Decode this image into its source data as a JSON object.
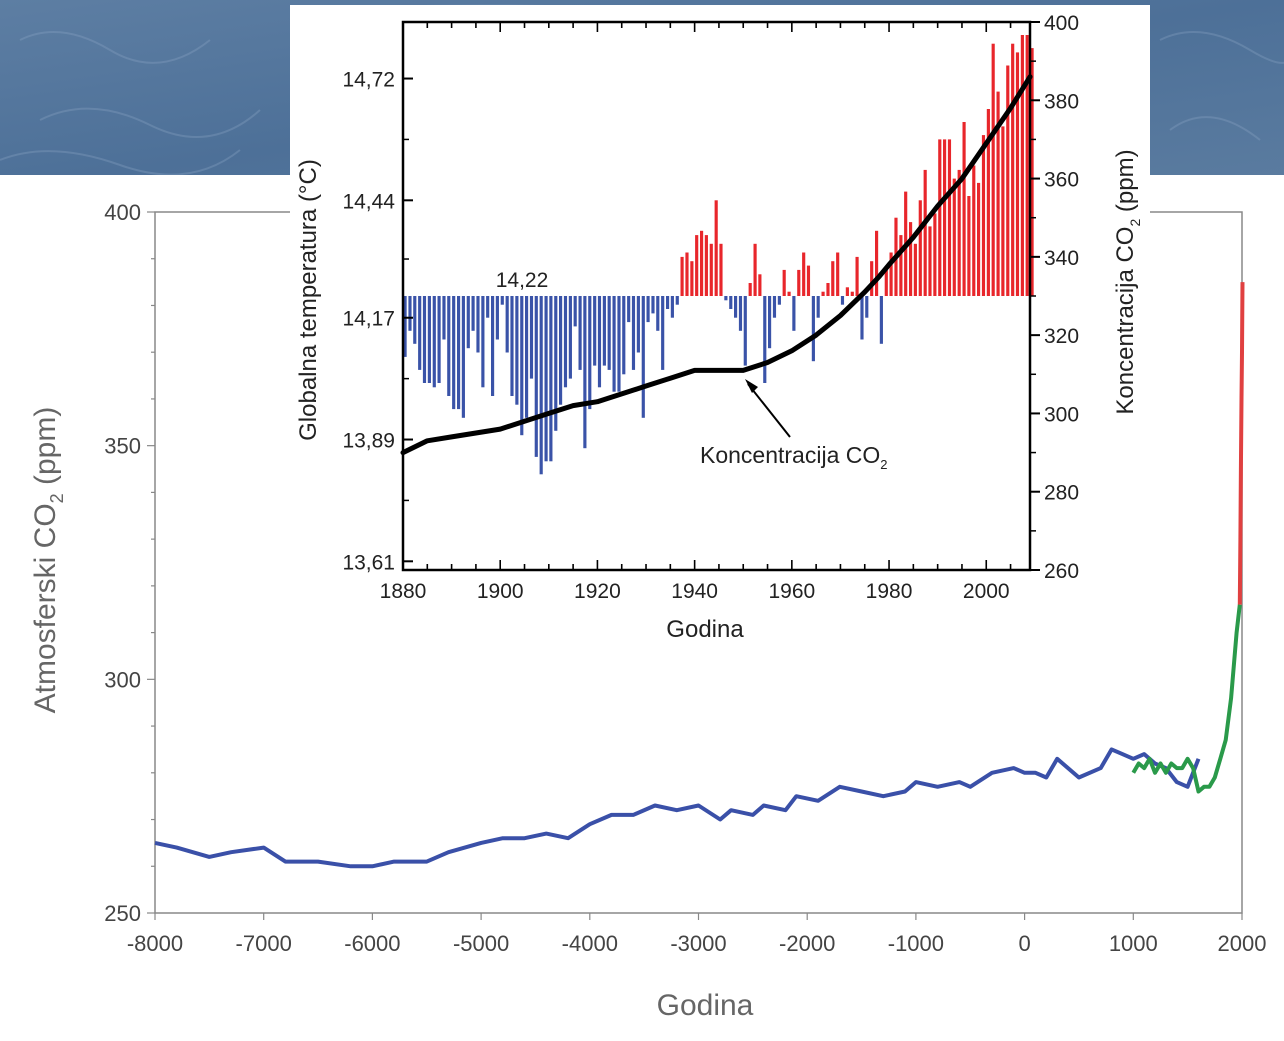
{
  "chart_data": [
    {
      "type": "line",
      "title": "",
      "xlabel": "Godina",
      "ylabel_text": "Atmosferski CO",
      "ylabel_sub": "2",
      "ylabel_unit": " (ppm)",
      "xlim": [
        -8000,
        2000
      ],
      "ylim": [
        250,
        400
      ],
      "x_ticks": [
        -8000,
        -7000,
        -6000,
        -5000,
        -4000,
        -3000,
        -2000,
        -1000,
        0,
        1000,
        2000
      ],
      "y_ticks": [
        250,
        300,
        350,
        400
      ],
      "grid": false,
      "series": [
        {
          "color": "#3a50a8",
          "x": [
            -8000,
            -7800,
            -7500,
            -7300,
            -7000,
            -6800,
            -6500,
            -6200,
            -6000,
            -5800,
            -5500,
            -5300,
            -5000,
            -4800,
            -4600,
            -4400,
            -4200,
            -4000,
            -3800,
            -3600,
            -3400,
            -3200,
            -3000,
            -2800,
            -2700,
            -2500,
            -2400,
            -2200,
            -2100,
            -1900,
            -1700,
            -1500,
            -1300,
            -1100,
            -1000,
            -800,
            -600,
            -500,
            -300,
            -100,
            0,
            100,
            200,
            300,
            500,
            700,
            800,
            900,
            1000,
            1100,
            1200,
            1300,
            1400,
            1500,
            1600
          ],
          "y": [
            265,
            264,
            262,
            263,
            264,
            261,
            261,
            260,
            260,
            261,
            261,
            263,
            265,
            266,
            266,
            267,
            266,
            269,
            271,
            271,
            273,
            272,
            273,
            270,
            272,
            271,
            273,
            272,
            275,
            274,
            277,
            276,
            275,
            276,
            278,
            277,
            278,
            277,
            280,
            281,
            280,
            280,
            279,
            283,
            279,
            281,
            285,
            284,
            283,
            284,
            282,
            281,
            278,
            277,
            283
          ]
        },
        {
          "color": "#2a9a4a",
          "x": [
            1000,
            1050,
            1100,
            1150,
            1200,
            1250,
            1300,
            1350,
            1400,
            1450,
            1500,
            1550,
            1600,
            1650,
            1700,
            1750,
            1800,
            1850,
            1900,
            1950,
            1980
          ],
          "y": [
            280,
            282,
            281,
            283,
            280,
            282,
            280,
            282,
            281,
            281,
            283,
            281,
            276,
            277,
            277,
            279,
            283,
            287,
            296,
            310,
            316
          ]
        },
        {
          "color": "#e04040",
          "x": [
            1980,
            1985,
            1990,
            1995,
            2000,
            2005
          ],
          "y": [
            316,
            330,
            345,
            360,
            370,
            385
          ]
        }
      ]
    },
    {
      "type": "bar",
      "title": "",
      "xlabel": "Godina",
      "ylabel_left": "Globalna temperatura (°C)",
      "ylabel_right_text": "Koncentracija CO",
      "ylabel_right_sub": "2",
      "ylabel_right_unit": " (ppm)",
      "xlim": [
        1880,
        2009
      ],
      "ylim_left": [
        13.59,
        14.85
      ],
      "ylim_right": [
        260,
        400
      ],
      "x_ticks": [
        1880,
        1900,
        1920,
        1940,
        1960,
        1980,
        2000
      ],
      "y_ticks_left": [
        "13,61",
        "13,89",
        "14,17",
        "14,44",
        "14,72"
      ],
      "y_ticks_left_values": [
        13.61,
        13.89,
        14.17,
        14.44,
        14.72
      ],
      "y_ticks_right": [
        260,
        280,
        300,
        320,
        340,
        360,
        380,
        400
      ],
      "baseline": 14.22,
      "baseline_label": "14,22",
      "annotation": "Koncentracija CO",
      "annotation_sub": "2",
      "colors": {
        "above": "#e8262b",
        "below": "#3a53a8",
        "line": "#000000"
      },
      "years_start": 1880,
      "temperature_anomaly": [
        -0.14,
        -0.08,
        -0.11,
        -0.17,
        -0.2,
        -0.2,
        -0.21,
        -0.2,
        -0.1,
        -0.23,
        -0.26,
        -0.26,
        -0.28,
        -0.12,
        -0.08,
        -0.13,
        -0.21,
        -0.05,
        -0.23,
        -0.1,
        -0.02,
        -0.13,
        -0.23,
        -0.25,
        -0.32,
        -0.28,
        -0.19,
        -0.37,
        -0.41,
        -0.38,
        -0.38,
        -0.31,
        -0.25,
        -0.21,
        -0.19,
        -0.07,
        -0.17,
        -0.35,
        -0.26,
        -0.16,
        -0.21,
        -0.16,
        -0.17,
        -0.22,
        -0.22,
        -0.18,
        -0.06,
        -0.17,
        -0.13,
        -0.28,
        -0.06,
        -0.04,
        -0.08,
        -0.17,
        -0.03,
        -0.05,
        -0.02,
        0.09,
        0.1,
        0.08,
        0.14,
        0.15,
        0.14,
        0.12,
        0.22,
        0.12,
        -0.01,
        -0.03,
        -0.05,
        -0.08,
        -0.16,
        0.03,
        0.12,
        0.05,
        -0.2,
        -0.12,
        -0.05,
        -0.02,
        0.06,
        0.01,
        -0.08,
        0.06,
        0.1,
        0.07,
        -0.15,
        -0.05,
        0.01,
        0.03,
        0.08,
        0.1,
        -0.02,
        0.02,
        0.01,
        0.09,
        -0.1,
        -0.05,
        0.08,
        0.15,
        -0.11,
        0.06,
        0.1,
        0.18,
        0.14,
        0.24,
        0.17,
        0.12,
        0.22,
        0.29,
        0.16,
        0.19,
        0.36,
        0.36,
        0.36,
        0.27,
        0.29,
        0.4,
        0.23,
        0.3,
        0.26,
        0.37,
        0.43,
        0.58,
        0.47,
        0.39,
        0.53,
        0.58,
        0.56,
        0.6,
        0.6,
        0.57
      ],
      "co2_concentration": {
        "x": [
          1880,
          1885,
          1890,
          1895,
          1900,
          1905,
          1910,
          1915,
          1920,
          1925,
          1930,
          1935,
          1940,
          1945,
          1950,
          1955,
          1960,
          1965,
          1970,
          1975,
          1978,
          1980,
          1985,
          1990,
          1995,
          2000,
          2005,
          2009
        ],
        "y": [
          290,
          293,
          294,
          295,
          296,
          298,
          300,
          302,
          303,
          305,
          307,
          309,
          311,
          311,
          311,
          313,
          316,
          320,
          325,
          331,
          335,
          338,
          345,
          353,
          360,
          369,
          378,
          386
        ]
      }
    }
  ]
}
